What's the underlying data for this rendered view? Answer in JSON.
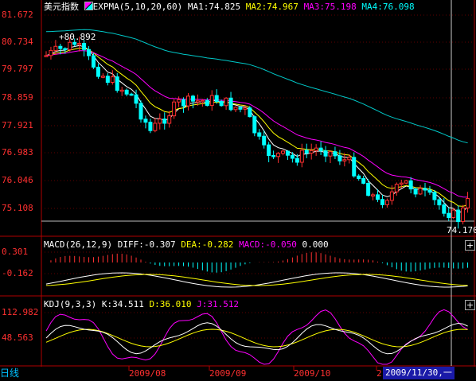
{
  "main": {
    "instrument": "美元指数",
    "indicator": "EXPMA(5,10,20,60)",
    "ma1": {
      "label": "MA1:74.825",
      "color": "#ffffff"
    },
    "ma2": {
      "label": "MA2:74.967",
      "color": "#ffff00"
    },
    "ma3": {
      "label": "MA3:75.198",
      "color": "#ff00ff"
    },
    "ma4": {
      "label": "MA4:76.098",
      "color": "#00ffff"
    },
    "yticks": [
      "81.672",
      "80.734",
      "79.797",
      "78.859",
      "77.921",
      "76.983",
      "76.046",
      "75.108"
    ],
    "high_marker": "+80.892",
    "low_marker": "74.170"
  },
  "macd": {
    "title": "MACD(26,12,9)",
    "diff": {
      "label": "DIFF:-0.307",
      "color": "#ffffff"
    },
    "dea": {
      "label": "DEA:-0.282",
      "color": "#ffff00"
    },
    "macd": {
      "label": "MACD:-0.050",
      "color": "#ff00ff"
    },
    "extra": "0.000",
    "yticks": [
      "0.301",
      "-0.162"
    ]
  },
  "kdj": {
    "title": "KDJ(9,3,3)",
    "k": {
      "label": "K:34.511",
      "color": "#ffffff"
    },
    "d": {
      "label": "D:36.010",
      "color": "#ffff00"
    },
    "j": {
      "label": "J:31.512",
      "color": "#ff00ff"
    },
    "yticks": [
      "112.982",
      "48.563"
    ]
  },
  "footer": {
    "period": "日线",
    "months": [
      "2009/08",
      "2009/09",
      "2009/10",
      "2"
    ],
    "cursor_date": "2009/11/30,一"
  },
  "colors": {
    "up": "#ff3030",
    "down": "#00ffff",
    "axis": "#b00000",
    "ma4": "#00c8c8"
  }
}
